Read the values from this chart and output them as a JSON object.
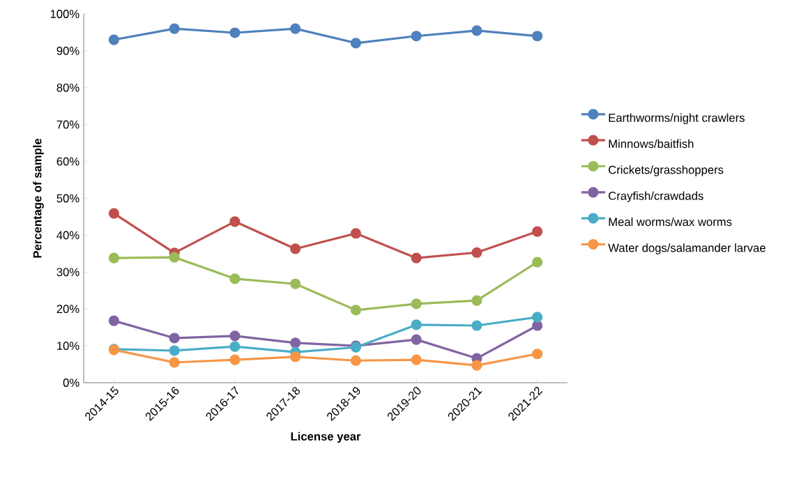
{
  "chart_data": {
    "type": "line",
    "xlabel": "License year",
    "ylabel": "Percentage of sample",
    "categories": [
      "2014-15",
      "2015-16",
      "2016-17",
      "2017-18",
      "2018-19",
      "2019-20",
      "2020-21",
      "2021-22"
    ],
    "ylim": [
      0,
      100
    ],
    "yticks": [
      {
        "value": 0,
        "label": "0%"
      },
      {
        "value": 10,
        "label": "10%"
      },
      {
        "value": 20,
        "label": "20%"
      },
      {
        "value": 30,
        "label": "30%"
      },
      {
        "value": 40,
        "label": "40%"
      },
      {
        "value": 50,
        "label": "50%"
      },
      {
        "value": 60,
        "label": "60%"
      },
      {
        "value": 70,
        "label": "70%"
      },
      {
        "value": 80,
        "label": "80%"
      },
      {
        "value": 90,
        "label": "90%"
      },
      {
        "value": 100,
        "label": "100%"
      }
    ],
    "grid": false,
    "legend": "right",
    "marker": "circle",
    "line_style": "solid",
    "series": [
      {
        "name": "Earthworms/night crawlers",
        "color": "#4f81bd",
        "values": [
          93.0,
          96.0,
          94.9,
          96.0,
          92.1,
          94.0,
          95.5,
          94.0
        ]
      },
      {
        "name": "Minnows/baitfish",
        "color": "#c0504d",
        "values": [
          45.9,
          35.2,
          43.7,
          36.3,
          40.5,
          33.8,
          35.3,
          41.0
        ]
      },
      {
        "name": "Crickets/grasshoppers",
        "color": "#9bbb59",
        "values": [
          33.8,
          34.0,
          28.2,
          26.8,
          19.7,
          21.4,
          22.3,
          32.7
        ]
      },
      {
        "name": "Crayfish/crawdads",
        "color": "#8064a2",
        "values": [
          16.8,
          12.1,
          12.7,
          10.8,
          10.0,
          11.7,
          6.6,
          15.5
        ]
      },
      {
        "name": "Meal worms/wax worms",
        "color": "#4bacc6",
        "values": [
          9.1,
          8.7,
          9.8,
          8.3,
          9.6,
          15.7,
          15.5,
          17.8
        ]
      },
      {
        "name": "Water dogs/salamander larvae",
        "color": "#f79646",
        "values": [
          8.9,
          5.5,
          6.2,
          7.0,
          6.0,
          6.2,
          4.7,
          7.8
        ]
      }
    ]
  }
}
